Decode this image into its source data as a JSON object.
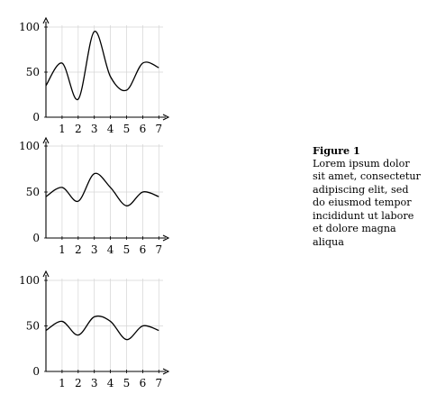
{
  "chart_data": [
    {
      "type": "line",
      "x": [
        0,
        1,
        2,
        3,
        4,
        5,
        6,
        7
      ],
      "xticks": [
        "1",
        "2",
        "3",
        "4",
        "5",
        "6",
        "7"
      ],
      "yticks": [
        "0",
        "50",
        "100"
      ],
      "xlim": [
        0,
        7.2
      ],
      "ylim": [
        0,
        100
      ],
      "grid": true,
      "series": [
        {
          "values": [
            35,
            60,
            20,
            95,
            45,
            30,
            60,
            55
          ]
        }
      ]
    },
    {
      "type": "line",
      "x": [
        0,
        1,
        2,
        3,
        4,
        5,
        6,
        7
      ],
      "xticks": [
        "1",
        "2",
        "3",
        "4",
        "5",
        "6",
        "7"
      ],
      "yticks": [
        "0",
        "50",
        "100"
      ],
      "xlim": [
        0,
        7.2
      ],
      "ylim": [
        0,
        100
      ],
      "grid": true,
      "series": [
        {
          "values": [
            45,
            55,
            40,
            70,
            55,
            35,
            50,
            45
          ]
        }
      ]
    },
    {
      "type": "line",
      "x": [
        0,
        1,
        2,
        3,
        4,
        5,
        6,
        7
      ],
      "xticks": [
        "1",
        "2",
        "3",
        "4",
        "5",
        "6",
        "7"
      ],
      "yticks": [
        "0",
        "50",
        "100"
      ],
      "xlim": [
        0,
        7.2
      ],
      "ylim": [
        0,
        100
      ],
      "grid": true,
      "series": [
        {
          "values": [
            45,
            55,
            40,
            60,
            55,
            35,
            50,
            45
          ]
        }
      ]
    }
  ],
  "caption": {
    "title": "Figure 1",
    "text": "Lorem ipsum dolor sit amet, consectetur adipiscing elit, sed do eiusmod tempor incididunt ut labore et dolore magna aliqua"
  }
}
